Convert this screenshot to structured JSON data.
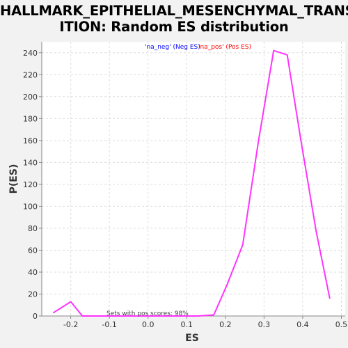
{
  "header": {
    "title_line1": "HALLMARK_EPITHELIAL_MESENCHYMAL_TRANS",
    "title_line2": "ITION: Random ES distribution"
  },
  "legend": {
    "neg": "'na_neg' (Neg ES)",
    "pos": "'na_pos' (Pos ES)"
  },
  "annotation": "Sets with pos scores: 98%",
  "colors": {
    "line": "#ff33ff",
    "neg": "#0000ff",
    "pos": "#ff0000",
    "plot_bg": "#ffffff",
    "grid": "#dddddd"
  },
  "chart_data": {
    "type": "line",
    "title": "HALLMARK_EPITHELIAL_MESENCHYMAL_TRANSITION: Random ES distribution",
    "xlabel": "ES",
    "ylabel": "P(ES)",
    "xlim": [
      -0.275,
      0.51
    ],
    "ylim": [
      0,
      250
    ],
    "xticks": [
      -0.2,
      -0.1,
      0.0,
      0.1,
      0.2,
      0.3,
      0.4,
      0.5
    ],
    "xtick_labels": [
      "-0.2",
      "-0.1",
      "0.0",
      "0.1",
      "0.2",
      "0.3",
      "0.4",
      "0.5"
    ],
    "yticks": [
      0,
      20,
      40,
      60,
      80,
      100,
      120,
      140,
      160,
      180,
      200,
      220,
      240
    ],
    "grid": true,
    "series": [
      {
        "x": [
          -0.245,
          -0.2,
          -0.17,
          -0.13,
          -0.09,
          -0.05,
          -0.01,
          0.03,
          0.07,
          0.13,
          0.17,
          0.205,
          0.245,
          0.285,
          0.325,
          0.36,
          0.395,
          0.435,
          0.47
        ],
        "y": [
          3,
          13,
          0,
          0,
          0,
          0,
          0,
          0,
          0,
          0,
          1,
          29,
          65,
          158,
          242,
          238,
          161,
          77,
          16
        ]
      }
    ]
  }
}
